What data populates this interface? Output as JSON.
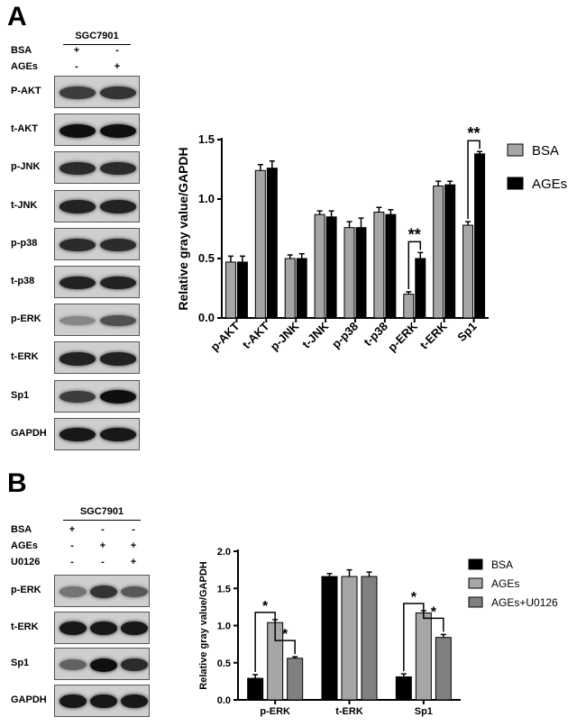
{
  "panelA": {
    "letter": "A",
    "cell_line": "SGC7901",
    "conditions": [
      {
        "label": "BSA",
        "marks": [
          "+",
          "-"
        ]
      },
      {
        "label": "AGEs",
        "marks": [
          "-",
          "+"
        ]
      }
    ],
    "blots": [
      {
        "label": "P-AKT",
        "bands": [
          0.75,
          0.8
        ]
      },
      {
        "label": "t-AKT",
        "bands": [
          1.0,
          1.0
        ]
      },
      {
        "label": "p-JNK",
        "bands": [
          0.85,
          0.85
        ]
      },
      {
        "label": "t-JNK",
        "bands": [
          0.9,
          0.9
        ]
      },
      {
        "label": "p-p38",
        "bands": [
          0.85,
          0.85
        ]
      },
      {
        "label": "t-p38",
        "bands": [
          0.9,
          0.9
        ]
      },
      {
        "label": "p-ERK",
        "bands": [
          0.35,
          0.65
        ]
      },
      {
        "label": "t-ERK",
        "bands": [
          0.9,
          0.9
        ]
      },
      {
        "label": "Sp1",
        "bands": [
          0.75,
          1.0
        ]
      },
      {
        "label": "GAPDH",
        "bands": [
          0.95,
          0.95
        ]
      }
    ]
  },
  "panelB": {
    "letter": "B",
    "cell_line": "SGC7901",
    "conditions": [
      {
        "label": "BSA",
        "marks": [
          "+",
          "-",
          "-"
        ]
      },
      {
        "label": "AGEs",
        "marks": [
          "-",
          "+",
          "+"
        ]
      },
      {
        "label": "U0126",
        "marks": [
          "-",
          "-",
          "+"
        ]
      }
    ],
    "blots": [
      {
        "label": "p-ERK",
        "bands": [
          0.45,
          0.8,
          0.6
        ]
      },
      {
        "label": "t-ERK",
        "bands": [
          0.95,
          0.95,
          0.95
        ]
      },
      {
        "label": "Sp1",
        "bands": [
          0.55,
          1.0,
          0.85
        ]
      },
      {
        "label": "GAPDH",
        "bands": [
          0.95,
          0.95,
          0.95
        ]
      }
    ]
  },
  "chart_data": [
    {
      "type": "bar",
      "ylabel": "Relative gray value/GAPDH",
      "ylim": [
        0,
        1.5
      ],
      "yticks": [
        "0.0",
        "0.5",
        "1.0",
        "1.5"
      ],
      "categories": [
        "p-AKT",
        "t-AKT",
        "p-JNK",
        "t-JNK",
        "p-p38",
        "t-p38",
        "p-ERK",
        "t-ERK",
        "Sp1"
      ],
      "series": [
        {
          "name": "BSA",
          "color": "#a6a6a6",
          "values": [
            0.47,
            1.24,
            0.5,
            0.87,
            0.76,
            0.89,
            0.2,
            1.11,
            0.78
          ],
          "errors": [
            0.05,
            0.05,
            0.03,
            0.03,
            0.05,
            0.04,
            0.02,
            0.04,
            0.03
          ]
        },
        {
          "name": "AGEs",
          "color": "#000000",
          "values": [
            0.47,
            1.26,
            0.5,
            0.85,
            0.76,
            0.87,
            0.5,
            1.12,
            1.38
          ],
          "errors": [
            0.05,
            0.06,
            0.04,
            0.05,
            0.08,
            0.04,
            0.05,
            0.03,
            0.02
          ]
        }
      ],
      "significance": [
        {
          "category": "p-ERK",
          "label": "**"
        },
        {
          "category": "Sp1",
          "label": "**"
        }
      ],
      "legend": "right"
    },
    {
      "type": "bar",
      "ylabel": "Relative gray value/GAPDH",
      "ylim": [
        0,
        2.0
      ],
      "yticks": [
        "0.0",
        "0.5",
        "1.0",
        "1.5",
        "2.0"
      ],
      "categories": [
        "p-ERK",
        "t-ERK",
        "Sp1"
      ],
      "series": [
        {
          "name": "BSA",
          "color": "#000000",
          "values": [
            0.29,
            1.66,
            0.31
          ],
          "errors": [
            0.05,
            0.04,
            0.04
          ]
        },
        {
          "name": "AGEs",
          "color": "#a6a6a6",
          "values": [
            1.04,
            1.66,
            1.17
          ],
          "errors": [
            0.04,
            0.09,
            0.03
          ]
        },
        {
          "name": "AGEs+U0126",
          "color": "#808080",
          "values": [
            0.56,
            1.66,
            0.84
          ],
          "errors": [
            0.02,
            0.06,
            0.04
          ]
        }
      ],
      "significance": [
        {
          "category": "p-ERK",
          "from": 0,
          "to": 1,
          "label": "*"
        },
        {
          "category": "p-ERK",
          "from": 1,
          "to": 2,
          "label": "*"
        },
        {
          "category": "Sp1",
          "from": 0,
          "to": 1,
          "label": "*"
        },
        {
          "category": "Sp1",
          "from": 1,
          "to": 2,
          "label": "*"
        }
      ],
      "legend": "right"
    }
  ]
}
